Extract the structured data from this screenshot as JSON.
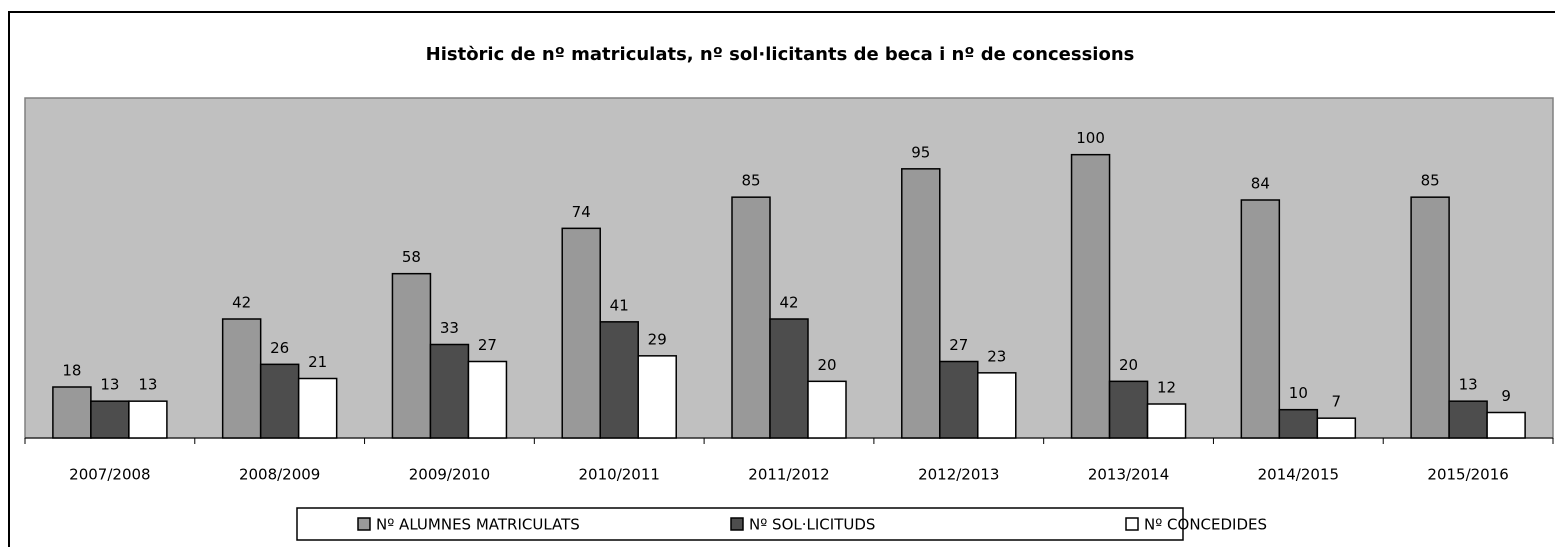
{
  "chart_data": {
    "type": "bar",
    "title": "Històric de nº matriculats, nº sol·licitants de beca i nº de concessions",
    "categories": [
      "2007/2008",
      "2008/2009",
      "2009/2010",
      "2010/2011",
      "2011/2012",
      "2012/2013",
      "2013/2014",
      "2014/2015",
      "2015/2016"
    ],
    "series": [
      {
        "name": "Nº ALUMNES MATRICULATS",
        "color": "#999999",
        "values": [
          18,
          42,
          58,
          74,
          85,
          95,
          100,
          84,
          85
        ]
      },
      {
        "name": "Nº SOL·LICITUDS",
        "color": "#4d4d4d",
        "values": [
          13,
          26,
          33,
          41,
          42,
          27,
          20,
          10,
          13
        ]
      },
      {
        "name": "Nº CONCEDIDES",
        "color": "#ffffff",
        "values": [
          13,
          21,
          27,
          29,
          20,
          23,
          12,
          7,
          9
        ]
      }
    ],
    "ylim": [
      0,
      120
    ],
    "grid": false,
    "plot_background": "#c0c0c0",
    "legend": "bottom"
  }
}
